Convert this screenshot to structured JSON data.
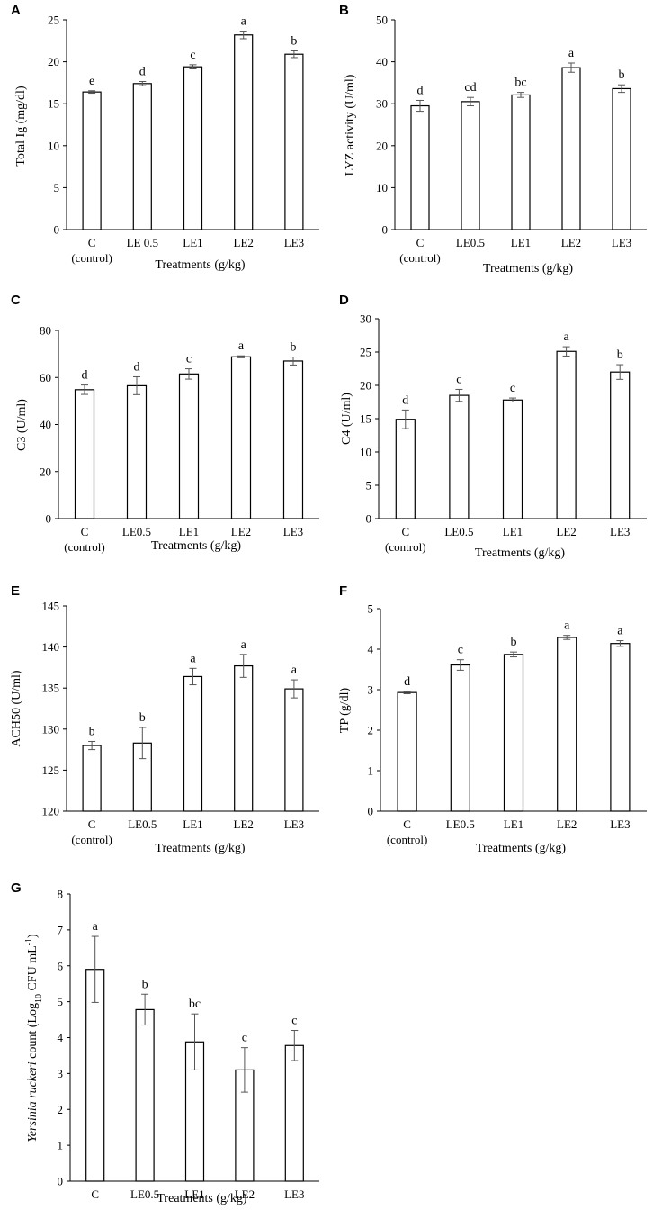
{
  "chart_data": [
    {
      "panel": "A",
      "type": "bar",
      "categories": [
        "C\n(control)",
        "LE 0.5",
        "LE1",
        "LE2",
        "LE3"
      ],
      "values": [
        16.4,
        17.4,
        19.4,
        23.2,
        20.9
      ],
      "errors": [
        0.15,
        0.25,
        0.25,
        0.45,
        0.4
      ],
      "letters": [
        "e",
        "d",
        "c",
        "a",
        "b"
      ],
      "ylabel": "Total Ig (mg/dl)",
      "xlabel": "Treatments (g/kg)",
      "ylim": [
        0,
        25
      ],
      "yticks": [
        0,
        5,
        10,
        15,
        20,
        25
      ]
    },
    {
      "panel": "B",
      "type": "bar",
      "categories": [
        "C\n(control)",
        "LE0.5",
        "LE1",
        "LE2",
        "LE3"
      ],
      "values": [
        29.5,
        30.5,
        32.1,
        38.6,
        33.6
      ],
      "errors": [
        1.3,
        1.0,
        0.6,
        1.1,
        0.9
      ],
      "letters": [
        "d",
        "cd",
        "bc",
        "a",
        "b"
      ],
      "ylabel": "LYZ activity (U/ml)",
      "xlabel": "Treatments (g/kg)",
      "ylim": [
        0,
        50
      ],
      "yticks": [
        0,
        10,
        20,
        30,
        40,
        50
      ]
    },
    {
      "panel": "C",
      "type": "bar",
      "categories": [
        "C\n(control)",
        "LE0.5",
        "LE1",
        "LE2",
        "LE3"
      ],
      "values": [
        54.8,
        56.5,
        61.5,
        68.8,
        67.0
      ],
      "errors": [
        2.0,
        3.8,
        2.2,
        0.4,
        1.7
      ],
      "letters": [
        "d",
        "d",
        "c",
        "a",
        "b"
      ],
      "ylabel": "C3 (U/ml)",
      "xlabel": "Treatments (g/kg)",
      "ylim": [
        0,
        80
      ],
      "yticks": [
        0,
        20,
        40,
        60,
        80
      ]
    },
    {
      "panel": "D",
      "type": "bar",
      "categories": [
        "C\n(control)",
        "LE0.5",
        "LE1",
        "LE2",
        "LE3"
      ],
      "values": [
        14.9,
        18.5,
        17.8,
        25.1,
        22.0
      ],
      "errors": [
        1.4,
        0.9,
        0.3,
        0.7,
        1.1
      ],
      "letters": [
        "d",
        "c",
        "c",
        "a",
        "b"
      ],
      "ylabel": "C4 (U/ml)",
      "xlabel": "Treatments (g/kg)",
      "ylim": [
        0,
        30
      ],
      "yticks": [
        0,
        5,
        10,
        15,
        20,
        25,
        30
      ]
    },
    {
      "panel": "E",
      "type": "bar",
      "categories": [
        "C\n(control)",
        "LE0.5",
        "LE1",
        "LE2",
        "LE3"
      ],
      "values": [
        128.0,
        128.3,
        136.4,
        137.7,
        134.9
      ],
      "errors": [
        0.5,
        1.9,
        1.0,
        1.4,
        1.1
      ],
      "letters": [
        "b",
        "b",
        "a",
        "a",
        "a"
      ],
      "ylabel": "ACH50 (U/ml)",
      "xlabel": "Treatments (g/kg)",
      "ylim": [
        120,
        145
      ],
      "yticks": [
        120,
        125,
        130,
        135,
        140,
        145
      ]
    },
    {
      "panel": "F",
      "type": "bar",
      "categories": [
        "C\n(control)",
        "LE0.5",
        "LE1",
        "LE2",
        "LE3"
      ],
      "values": [
        2.93,
        3.61,
        3.87,
        4.29,
        4.14
      ],
      "errors": [
        0.03,
        0.13,
        0.06,
        0.05,
        0.07
      ],
      "letters": [
        "d",
        "c",
        "b",
        "a",
        "a"
      ],
      "ylabel": "TP (g/dl)",
      "xlabel": "Treatments (g/kg)",
      "ylim": [
        0,
        5
      ],
      "yticks": [
        0,
        1,
        2,
        3,
        4,
        5
      ]
    },
    {
      "panel": "G",
      "type": "bar",
      "categories": [
        "C\n(control)",
        "LE0.5",
        "LE1",
        "LE2",
        "LE3"
      ],
      "values": [
        5.9,
        4.78,
        3.88,
        3.1,
        3.78
      ],
      "errors": [
        0.92,
        0.43,
        0.78,
        0.62,
        0.42
      ],
      "letters": [
        "a",
        "b",
        "bc",
        "c",
        "c"
      ],
      "ylabel_italic": "Yersinia ruckeri",
      "ylabel_rest": " count (Log",
      "ylabel_sub": "10",
      "ylabel_end": " CFU mL",
      "ylabel_sup": "-1",
      "ylabel_close": ")",
      "xlabel": "Treatments (g/kg)",
      "ylim": [
        0,
        8
      ],
      "yticks": [
        0,
        1,
        2,
        3,
        4,
        5,
        6,
        7,
        8
      ]
    }
  ]
}
